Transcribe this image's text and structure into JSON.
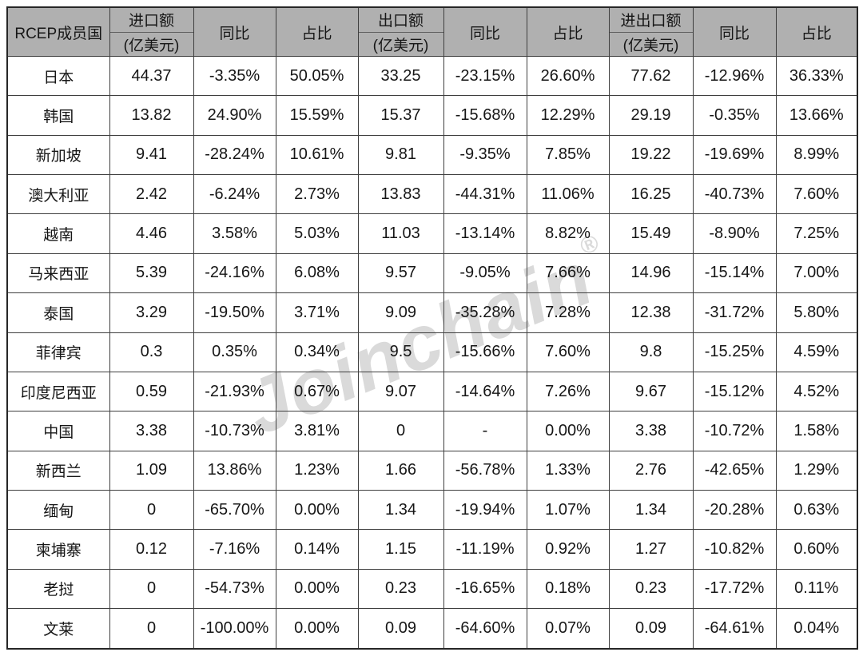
{
  "watermark": {
    "text": "Joinchain",
    "registered_mark": "®",
    "color": "#dadada"
  },
  "colors": {
    "header_bg": "#b0b0b0",
    "grid_line": "#3f3f3f",
    "outer_border": "#262626",
    "text": "#161616",
    "cell_bg": "#ffffff"
  },
  "header": {
    "country": "RCEP成员国",
    "groups": [
      {
        "amount_title": "进口额",
        "amount_unit": "(亿美元)",
        "yoy": "同比",
        "share": "占比"
      },
      {
        "amount_title": "出口额",
        "amount_unit": "(亿美元)",
        "yoy": "同比",
        "share": "占比"
      },
      {
        "amount_title": "进出口额",
        "amount_unit": "(亿美元)",
        "yoy": "同比",
        "share": "占比"
      }
    ]
  },
  "chart_data": {
    "type": "table",
    "title": "RCEP成员国进出口贸易数据表",
    "columns": [
      "RCEP成员国",
      "进口额(亿美元)",
      "同比",
      "占比",
      "出口额(亿美元)",
      "同比",
      "占比",
      "进出口额(亿美元)",
      "同比",
      "占比"
    ],
    "rows": [
      [
        "日本",
        "44.37",
        "-3.35%",
        "50.05%",
        "33.25",
        "-23.15%",
        "26.60%",
        "77.62",
        "-12.96%",
        "36.33%"
      ],
      [
        "韩国",
        "13.82",
        "24.90%",
        "15.59%",
        "15.37",
        "-15.68%",
        "12.29%",
        "29.19",
        "-0.35%",
        "13.66%"
      ],
      [
        "新加坡",
        "9.41",
        "-28.24%",
        "10.61%",
        "9.81",
        "-9.35%",
        "7.85%",
        "19.22",
        "-19.69%",
        "8.99%"
      ],
      [
        "澳大利亚",
        "2.42",
        "-6.24%",
        "2.73%",
        "13.83",
        "-44.31%",
        "11.06%",
        "16.25",
        "-40.73%",
        "7.60%"
      ],
      [
        "越南",
        "4.46",
        "3.58%",
        "5.03%",
        "11.03",
        "-13.14%",
        "8.82%",
        "15.49",
        "-8.90%",
        "7.25%"
      ],
      [
        "马来西亚",
        "5.39",
        "-24.16%",
        "6.08%",
        "9.57",
        "-9.05%",
        "7.66%",
        "14.96",
        "-15.14%",
        "7.00%"
      ],
      [
        "泰国",
        "3.29",
        "-19.50%",
        "3.71%",
        "9.09",
        "-35.28%",
        "7.28%",
        "12.38",
        "-31.72%",
        "5.80%"
      ],
      [
        "菲律宾",
        "0.3",
        "0.35%",
        "0.34%",
        "9.5",
        "-15.66%",
        "7.60%",
        "9.8",
        "-15.25%",
        "4.59%"
      ],
      [
        "印度尼西亚",
        "0.59",
        "-21.93%",
        "0.67%",
        "9.07",
        "-14.64%",
        "7.26%",
        "9.67",
        "-15.12%",
        "4.52%"
      ],
      [
        "中国",
        "3.38",
        "-10.73%",
        "3.81%",
        "0",
        "-",
        "0.00%",
        "3.38",
        "-10.72%",
        "1.58%"
      ],
      [
        "新西兰",
        "1.09",
        "13.86%",
        "1.23%",
        "1.66",
        "-56.78%",
        "1.33%",
        "2.76",
        "-42.65%",
        "1.29%"
      ],
      [
        "缅甸",
        "0",
        "-65.70%",
        "0.00%",
        "1.34",
        "-19.94%",
        "1.07%",
        "1.34",
        "-20.28%",
        "0.63%"
      ],
      [
        "柬埔寨",
        "0.12",
        "-7.16%",
        "0.14%",
        "1.15",
        "-11.19%",
        "0.92%",
        "1.27",
        "-10.82%",
        "0.60%"
      ],
      [
        "老挝",
        "0",
        "-54.73%",
        "0.00%",
        "0.23",
        "-16.65%",
        "0.18%",
        "0.23",
        "-17.72%",
        "0.11%"
      ],
      [
        "文莱",
        "0",
        "-100.00%",
        "0.00%",
        "0.09",
        "-64.60%",
        "0.07%",
        "0.09",
        "-64.61%",
        "0.04%"
      ]
    ]
  }
}
